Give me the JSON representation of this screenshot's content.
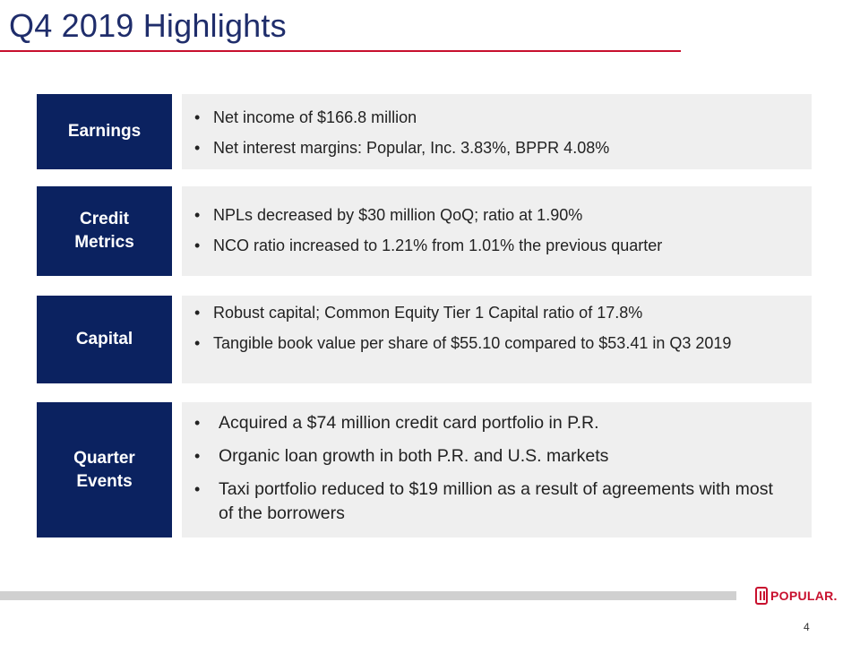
{
  "title": "Q4 2019 Highlights",
  "sections": [
    {
      "label": "Earnings",
      "bullets": [
        "Net income of $166.8 million",
        "Net interest margins: Popular, Inc. 3.83%, BPPR 4.08%"
      ]
    },
    {
      "label": "Credit Metrics",
      "bullets": [
        "NPLs decreased by $30 million QoQ; ratio at 1.90%",
        "NCO ratio increased to 1.21% from 1.01% the previous quarter"
      ]
    },
    {
      "label": "Capital",
      "bullets": [
        "Robust capital; Common Equity Tier 1 Capital ratio of 17.8%",
        "Tangible book value per share of $55.10 compared to $53.41 in Q3 2019"
      ]
    },
    {
      "label": "Quarter Events",
      "bullets": [
        "Acquired a $74 million credit card portfolio in P.R.",
        "Organic loan growth in both P.R. and U.S. markets",
        "Taxi portfolio reduced to $19 million as a result of agreements with most of the borrowers"
      ]
    }
  ],
  "logo_text": "POPULAR.",
  "page_number": "4",
  "colors": {
    "title": "#1f2d6b",
    "accent_rule": "#c8102e",
    "label_bg": "#0b2260",
    "content_bg": "#efefef"
  }
}
